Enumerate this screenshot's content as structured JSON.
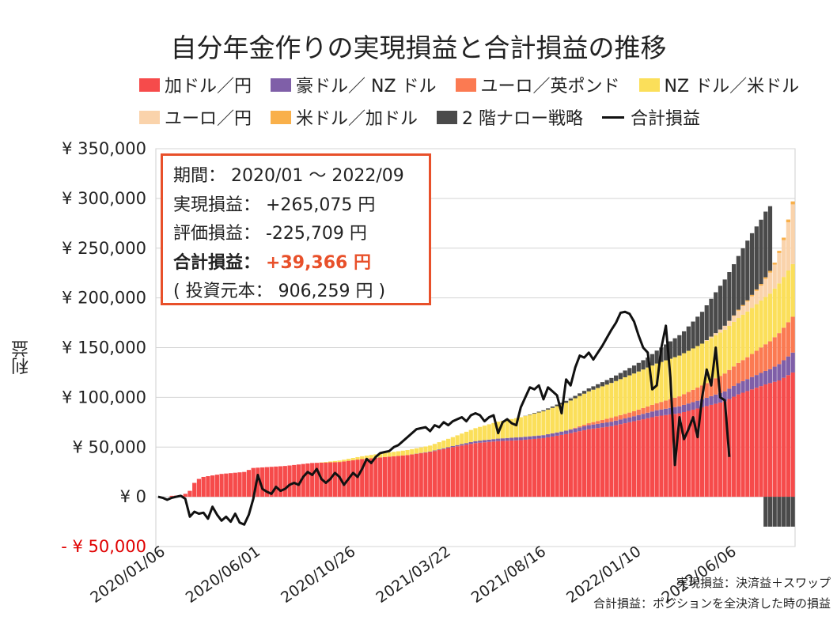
{
  "chart_data": {
    "type": "bar",
    "title": "自分年金作りの実現損益と合計損益の推移",
    "ylabel": "利益",
    "xlabel": "",
    "ylim": [
      -50000,
      350000
    ],
    "grid": true,
    "legend_position": "top",
    "y_ticks": [
      {
        "value": 350000,
        "label": "¥ 350,000"
      },
      {
        "value": 300000,
        "label": "¥ 300,000"
      },
      {
        "value": 250000,
        "label": "¥ 250,000"
      },
      {
        "value": 200000,
        "label": "¥ 200,000"
      },
      {
        "value": 150000,
        "label": "¥ 150,000"
      },
      {
        "value": 100000,
        "label": "¥ 100,000"
      },
      {
        "value": 50000,
        "label": "¥ 50,000"
      },
      {
        "value": 0,
        "label": "¥ 0"
      },
      {
        "value": -50000,
        "label": "- ¥ 50,000",
        "color": "#e00000"
      }
    ],
    "x_ticks": [
      {
        "index": 0,
        "label": "2020/01/06"
      },
      {
        "index": 21,
        "label": "2020/06/01"
      },
      {
        "index": 42,
        "label": "2020/10/26"
      },
      {
        "index": 63,
        "label": "2021/03/22"
      },
      {
        "index": 84,
        "label": "2021/08/16"
      },
      {
        "index": 105,
        "label": "2022/01/10"
      },
      {
        "index": 126,
        "label": "2022/06/06"
      }
    ],
    "n_points": 141,
    "series": [
      {
        "name": "加ドル／円",
        "color": "#f64b4b",
        "kind": "bar",
        "knots": [
          [
            0,
            0
          ],
          [
            2,
            0
          ],
          [
            3,
            1000
          ],
          [
            5,
            1500
          ],
          [
            6,
            3000
          ],
          [
            7,
            6000
          ],
          [
            8,
            14000
          ],
          [
            9,
            18000
          ],
          [
            10,
            20000
          ],
          [
            14,
            23000
          ],
          [
            19,
            25000
          ],
          [
            20,
            27000
          ],
          [
            21,
            29000
          ],
          [
            28,
            31000
          ],
          [
            34,
            34000
          ],
          [
            40,
            35000
          ],
          [
            45,
            38000
          ],
          [
            50,
            40000
          ],
          [
            55,
            42000
          ],
          [
            60,
            45000
          ],
          [
            65,
            50000
          ],
          [
            70,
            54000
          ],
          [
            75,
            56000
          ],
          [
            80,
            57000
          ],
          [
            85,
            59000
          ],
          [
            90,
            63000
          ],
          [
            95,
            68000
          ],
          [
            100,
            71000
          ],
          [
            105,
            76000
          ],
          [
            110,
            81000
          ],
          [
            115,
            84000
          ],
          [
            120,
            90000
          ],
          [
            125,
            96000
          ],
          [
            128,
            103000
          ],
          [
            131,
            108000
          ],
          [
            134,
            113000
          ],
          [
            137,
            117000
          ],
          [
            140,
            125000
          ]
        ]
      },
      {
        "name": "豪ドル／ NZ ドル",
        "color": "#7f5fa8",
        "kind": "bar",
        "knots": [
          [
            0,
            0
          ],
          [
            55,
            0
          ],
          [
            60,
            500
          ],
          [
            65,
            1000
          ],
          [
            70,
            2000
          ],
          [
            75,
            2500
          ],
          [
            80,
            3000
          ],
          [
            85,
            3000
          ],
          [
            90,
            3500
          ],
          [
            95,
            4000
          ],
          [
            100,
            4500
          ],
          [
            105,
            5000
          ],
          [
            110,
            6000
          ],
          [
            115,
            7000
          ],
          [
            120,
            8000
          ],
          [
            125,
            10000
          ],
          [
            130,
            12000
          ],
          [
            135,
            14000
          ],
          [
            140,
            20000
          ]
        ]
      },
      {
        "name": "ユーロ／英ポンド",
        "color": "#fb7a52",
        "kind": "bar",
        "knots": [
          [
            0,
            0
          ],
          [
            90,
            0
          ],
          [
            95,
            2000
          ],
          [
            100,
            4000
          ],
          [
            105,
            5000
          ],
          [
            110,
            7000
          ],
          [
            115,
            10000
          ],
          [
            120,
            14000
          ],
          [
            125,
            18000
          ],
          [
            130,
            22000
          ],
          [
            135,
            28000
          ],
          [
            140,
            36000
          ]
        ]
      },
      {
        "name": "NZ ドル／米ドル",
        "color": "#fbdf5a",
        "kind": "bar",
        "knots": [
          [
            0,
            0
          ],
          [
            35,
            0
          ],
          [
            42,
            2000
          ],
          [
            50,
            4000
          ],
          [
            55,
            5000
          ],
          [
            60,
            6000
          ],
          [
            65,
            9000
          ],
          [
            70,
            13000
          ],
          [
            75,
            17000
          ],
          [
            80,
            20000
          ],
          [
            85,
            24000
          ],
          [
            90,
            28000
          ],
          [
            95,
            32000
          ],
          [
            100,
            35000
          ],
          [
            105,
            38000
          ],
          [
            110,
            40000
          ],
          [
            115,
            41000
          ],
          [
            120,
            42000
          ],
          [
            125,
            44000
          ],
          [
            130,
            46000
          ],
          [
            135,
            48000
          ],
          [
            140,
            53000
          ]
        ]
      },
      {
        "name": "ユーロ／円",
        "color": "#fad3ab",
        "kind": "bar",
        "knots": [
          [
            0,
            0
          ],
          [
            120,
            0
          ],
          [
            124,
            3000
          ],
          [
            127,
            6000
          ],
          [
            130,
            10000
          ],
          [
            133,
            15000
          ],
          [
            136,
            24000
          ],
          [
            138,
            37000
          ],
          [
            140,
            60000
          ]
        ]
      },
      {
        "name": "米ドル／加ドル",
        "color": "#f9b04a",
        "kind": "bar",
        "knots": [
          [
            0,
            0
          ],
          [
            126,
            0
          ],
          [
            128,
            1000
          ],
          [
            132,
            1500
          ],
          [
            136,
            2000
          ],
          [
            140,
            3000
          ]
        ]
      },
      {
        "name": "2 階ナロー戦略",
        "color": "#4a4a4a",
        "kind": "bar",
        "knots": [
          [
            0,
            0
          ],
          [
            80,
            0
          ],
          [
            85,
            1000
          ],
          [
            90,
            2000
          ],
          [
            95,
            3000
          ],
          [
            100,
            5000
          ],
          [
            105,
            8000
          ],
          [
            108,
            10000
          ],
          [
            112,
            16000
          ],
          [
            116,
            22000
          ],
          [
            120,
            32000
          ],
          [
            124,
            44000
          ],
          [
            128,
            54000
          ],
          [
            130,
            60000
          ],
          [
            131,
            62000
          ],
          [
            134,
            66000
          ],
          [
            135,
            65000
          ]
        ],
        "negative_knots": [
          [
            134,
            -30000
          ],
          [
            140,
            -30000
          ]
        ]
      },
      {
        "name": "合計損益",
        "color": "#111111",
        "kind": "line",
        "knots": [
          [
            0,
            0
          ],
          [
            1,
            -1000
          ],
          [
            2,
            -3000
          ],
          [
            3,
            -1000
          ],
          [
            5,
            1000
          ],
          [
            6,
            -2000
          ],
          [
            7,
            -20000
          ],
          [
            8,
            -15000
          ],
          [
            9,
            -17000
          ],
          [
            10,
            -16000
          ],
          [
            11,
            -22000
          ],
          [
            12,
            -10000
          ],
          [
            13,
            -18000
          ],
          [
            14,
            -24000
          ],
          [
            15,
            -20000
          ],
          [
            16,
            -25000
          ],
          [
            17,
            -17000
          ],
          [
            18,
            -26000
          ],
          [
            19,
            -28000
          ],
          [
            20,
            -18000
          ],
          [
            21,
            -2000
          ],
          [
            22,
            22000
          ],
          [
            23,
            8000
          ],
          [
            24,
            5000
          ],
          [
            25,
            3000
          ],
          [
            26,
            10000
          ],
          [
            27,
            6000
          ],
          [
            28,
            8000
          ],
          [
            29,
            12000
          ],
          [
            30,
            14000
          ],
          [
            31,
            12000
          ],
          [
            32,
            20000
          ],
          [
            33,
            25000
          ],
          [
            34,
            22000
          ],
          [
            35,
            28000
          ],
          [
            36,
            18000
          ],
          [
            37,
            14000
          ],
          [
            38,
            18000
          ],
          [
            39,
            24000
          ],
          [
            40,
            20000
          ],
          [
            41,
            12000
          ],
          [
            42,
            18000
          ],
          [
            43,
            24000
          ],
          [
            44,
            20000
          ],
          [
            45,
            28000
          ],
          [
            46,
            38000
          ],
          [
            47,
            34000
          ],
          [
            48,
            40000
          ],
          [
            49,
            44000
          ],
          [
            50,
            45000
          ],
          [
            51,
            46000
          ],
          [
            52,
            50000
          ],
          [
            53,
            52000
          ],
          [
            54,
            56000
          ],
          [
            55,
            60000
          ],
          [
            56,
            64000
          ],
          [
            57,
            68000
          ],
          [
            58,
            69000
          ],
          [
            59,
            70000
          ],
          [
            60,
            66000
          ],
          [
            61,
            72000
          ],
          [
            62,
            70000
          ],
          [
            63,
            75000
          ],
          [
            64,
            72000
          ],
          [
            65,
            76000
          ],
          [
            66,
            78000
          ],
          [
            67,
            80000
          ],
          [
            68,
            76000
          ],
          [
            69,
            82000
          ],
          [
            70,
            84000
          ],
          [
            71,
            82000
          ],
          [
            72,
            76000
          ],
          [
            73,
            80000
          ],
          [
            74,
            82000
          ],
          [
            75,
            64000
          ],
          [
            76,
            75000
          ],
          [
            77,
            78000
          ],
          [
            78,
            74000
          ],
          [
            79,
            72000
          ],
          [
            80,
            90000
          ],
          [
            81,
            100000
          ],
          [
            82,
            110000
          ],
          [
            83,
            108000
          ],
          [
            84,
            112000
          ],
          [
            85,
            98000
          ],
          [
            86,
            110000
          ],
          [
            87,
            106000
          ],
          [
            88,
            102000
          ],
          [
            89,
            84000
          ],
          [
            90,
            118000
          ],
          [
            91,
            112000
          ],
          [
            92,
            130000
          ],
          [
            93,
            142000
          ],
          [
            94,
            140000
          ],
          [
            95,
            145000
          ],
          [
            96,
            138000
          ],
          [
            97,
            145000
          ],
          [
            98,
            152000
          ],
          [
            99,
            160000
          ],
          [
            100,
            168000
          ],
          [
            101,
            175000
          ],
          [
            102,
            185000
          ],
          [
            103,
            186000
          ],
          [
            104,
            184000
          ],
          [
            105,
            176000
          ],
          [
            106,
            162000
          ],
          [
            107,
            150000
          ],
          [
            108,
            145000
          ],
          [
            109,
            108000
          ],
          [
            110,
            112000
          ],
          [
            111,
            150000
          ],
          [
            112,
            172000
          ],
          [
            113,
            120000
          ],
          [
            114,
            32000
          ],
          [
            115,
            80000
          ],
          [
            116,
            58000
          ],
          [
            117,
            68000
          ],
          [
            118,
            80000
          ],
          [
            119,
            60000
          ],
          [
            120,
            100000
          ],
          [
            121,
            128000
          ],
          [
            122,
            112000
          ],
          [
            123,
            150000
          ],
          [
            124,
            100000
          ],
          [
            125,
            97000
          ],
          [
            126,
            40000
          ]
        ]
      }
    ],
    "info_box": {
      "period": "期間： 2020/01 ～ 2022/09",
      "realized": "実現損益： +265,075 円",
      "unrealized": "評価損益： -225,709 円",
      "total_label": "合計損益：",
      "total_value": "+39,366 円",
      "principal": "( 投資元本： 906,259 円 )"
    },
    "footnotes": [
      "実現損益：決済益＋スワップ",
      "合計損益：ポジションを全決済した時の損益"
    ]
  }
}
